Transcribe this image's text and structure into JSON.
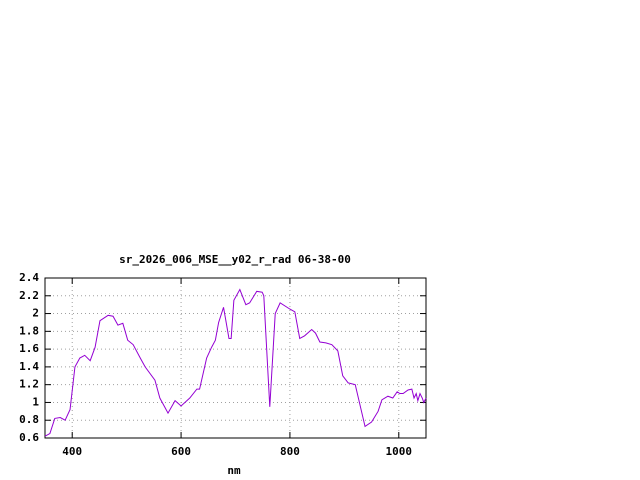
{
  "chart_data": {
    "type": "line",
    "title": "sr_2026_006_MSE__y02_r_rad 06-38-00",
    "x_label": "nm",
    "x": [
      350,
      359,
      368,
      378,
      387,
      396,
      405,
      414,
      423,
      433,
      442,
      451,
      466,
      475,
      484,
      493,
      502,
      512,
      525,
      534,
      552,
      561,
      576,
      589,
      600,
      616,
      629,
      634,
      647,
      656,
      663,
      669,
      678,
      688,
      692,
      697,
      708,
      719,
      726,
      739,
      749,
      752,
      763,
      773,
      782,
      800,
      809,
      818,
      827,
      840,
      847,
      855,
      866,
      877,
      888,
      897,
      907,
      920,
      938,
      950,
      962,
      969,
      980,
      989,
      997,
      1002,
      1008,
      1017,
      1024,
      1028,
      1032,
      1035,
      1039,
      1043,
      1046,
      1050
    ],
    "series": [
      {
        "color": "#9400d3",
        "values": [
          0.62,
          0.65,
          0.82,
          0.83,
          0.8,
          0.92,
          1.4,
          1.5,
          1.53,
          1.47,
          1.62,
          1.92,
          1.98,
          1.97,
          1.87,
          1.89,
          1.7,
          1.65,
          1.5,
          1.4,
          1.25,
          1.05,
          0.88,
          1.02,
          0.96,
          1.05,
          1.15,
          1.15,
          1.5,
          1.62,
          1.7,
          1.9,
          2.07,
          1.72,
          1.72,
          2.15,
          2.27,
          2.1,
          2.12,
          2.25,
          2.24,
          2.2,
          0.95,
          2.0,
          2.12,
          2.05,
          2.02,
          1.72,
          1.75,
          1.82,
          1.78,
          1.68,
          1.67,
          1.65,
          1.58,
          1.3,
          1.22,
          1.2,
          0.73,
          0.78,
          0.9,
          1.03,
          1.07,
          1.05,
          1.12,
          1.1,
          1.1,
          1.14,
          1.15,
          1.05,
          1.1,
          1.02,
          1.1,
          1.05,
          1.0,
          1.05
        ]
      }
    ],
    "xlim": [
      350,
      1050
    ],
    "xticks": [
      400,
      600,
      800,
      1000
    ],
    "ylim": [
      0.6,
      2.4
    ],
    "yticks": [
      0.6,
      0.8,
      1,
      1.2,
      1.4,
      1.6,
      1.8,
      2,
      2.2,
      2.4
    ],
    "grid": true
  }
}
